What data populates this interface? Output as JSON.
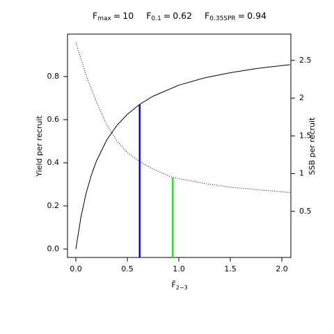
{
  "chart_data": {
    "type": "line",
    "title_parts": [
      {
        "symbol": "F",
        "sub": "max",
        "sign": "=",
        "value": 10
      },
      {
        "symbol": "F",
        "sub": "0.1",
        "sign": "=",
        "value": 0.62,
        "line_color": "#0000ff"
      },
      {
        "symbol": "F",
        "sub": "0.35SPR",
        "sign": "=",
        "value": 0.94,
        "line_color": "#00ff00"
      }
    ],
    "xlabel": {
      "symbol": "F̄",
      "sub": "2−3"
    },
    "ylabel": "Yield per recruit",
    "y2label": "SSB per recruit",
    "xlim": [
      -0.081,
      2.088
    ],
    "ylim": [
      -0.039,
      0.997
    ],
    "y2lim": [
      -0.11,
      2.848
    ],
    "xticks": [
      {
        "value": 0,
        "label": "0.0"
      },
      0.5,
      {
        "value": 1,
        "label": "1.0"
      },
      1.5,
      {
        "value": 2,
        "label": "2.0"
      }
    ],
    "yticks": [
      {
        "value": 0,
        "label": "0.0"
      },
      0.2,
      0.4,
      0.6,
      0.8
    ],
    "y2ticks": [
      0.5,
      1,
      1.5,
      2,
      2.5
    ],
    "series": [
      {
        "color": "#000000",
        "dash": "solid",
        "axis": "y",
        "x": [
          0,
          0.05,
          0.1,
          0.15,
          0.2,
          0.3,
          0.4,
          0.5,
          0.62,
          0.75,
          1,
          1.25,
          1.5,
          1.75,
          2,
          2.08
        ],
        "values": [
          0,
          0.149,
          0.259,
          0.342,
          0.408,
          0.506,
          0.574,
          0.625,
          0.671,
          0.709,
          0.76,
          0.794,
          0.818,
          0.837,
          0.851,
          0.855
        ]
      },
      {
        "color": "#000000",
        "dash": "dotted",
        "axis": "y2",
        "x": [
          0,
          0.1,
          0.2,
          0.3,
          0.4,
          0.5,
          0.62,
          0.75,
          0.94,
          1.25,
          1.5,
          1.75,
          2.08
        ],
        "values": [
          2.74,
          2.3,
          1.95,
          1.65,
          1.43,
          1.28,
          1.16,
          1.06,
          0.95,
          0.87,
          0.82,
          0.79,
          0.75
        ]
      }
    ]
  }
}
